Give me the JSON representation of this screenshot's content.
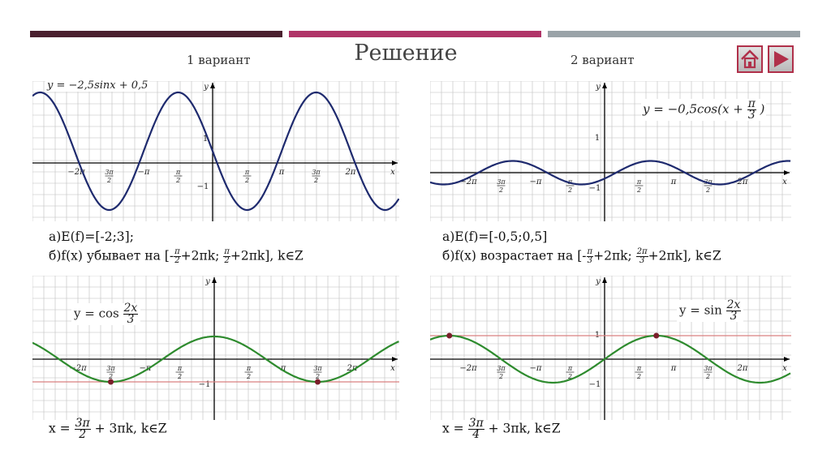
{
  "header": {
    "title": "Решение",
    "variant1": "1 вариант",
    "variant2": "2 вариант"
  },
  "nav": {
    "home_icon": "home-icon",
    "next_icon": "play-right-icon"
  },
  "colors": {
    "bar1": "#4a1f2e",
    "bar2": "#b03468",
    "bar3": "#9aa3a8",
    "blue_curve": "#1e2a6e",
    "green_curve": "#2e8b2e",
    "red_line": "#d98080",
    "grid": "#bdbdbd"
  },
  "panels": {
    "p1": {
      "formula": "y = −2,5sinx + 0,5",
      "answer_a": "а)E(f)=[-2;3];",
      "answer_b_prefix": "б)f(x) убывает на [-",
      "answer_b_frac1": {
        "n": "π",
        "d": "2"
      },
      "answer_b_mid": "+2πk;",
      "answer_b_frac2": {
        "n": "π",
        "d": "2"
      },
      "answer_b_suffix": "+2πk], k∈Z"
    },
    "p2": {
      "formula_prefix": "y = −0,5cos(x +",
      "formula_frac": {
        "n": "π",
        "d": "3"
      },
      "formula_suffix": ")",
      "answer_a": "а)E(f)=[-0,5;0,5]",
      "answer_b_prefix": "б)f(x) возрастает на [-",
      "answer_b_frac1": {
        "n": "π",
        "d": "3"
      },
      "answer_b_mid": "+2πk;",
      "answer_b_frac2": {
        "n": "2π",
        "d": "3"
      },
      "answer_b_suffix": "+2πk], k∈Z"
    },
    "p3": {
      "formula_prefix": "y = cos",
      "formula_frac": {
        "n": "2x",
        "d": "3"
      },
      "answer_prefix": "x =",
      "answer_frac": {
        "n": "3π",
        "d": "2"
      },
      "answer_suffix": "+ 3πk, k∈Z"
    },
    "p4": {
      "formula_prefix": "y = sin",
      "formula_frac": {
        "n": "2x",
        "d": "3"
      },
      "answer_prefix": "x =",
      "answer_frac": {
        "n": "3π",
        "d": "4"
      },
      "answer_suffix": "+ 3πk, k∈Z"
    }
  },
  "axis_labels": {
    "x": "x",
    "y": "y",
    "one": "1",
    "minus_one": "−1",
    "neg_2pi": "−2π",
    "neg_pi": "−π",
    "two_pi": "2π",
    "pi": "π",
    "frac_3pi_2": {
      "n": "3π",
      "d": "2"
    },
    "frac_pi_2": {
      "n": "π",
      "d": "2"
    }
  }
}
